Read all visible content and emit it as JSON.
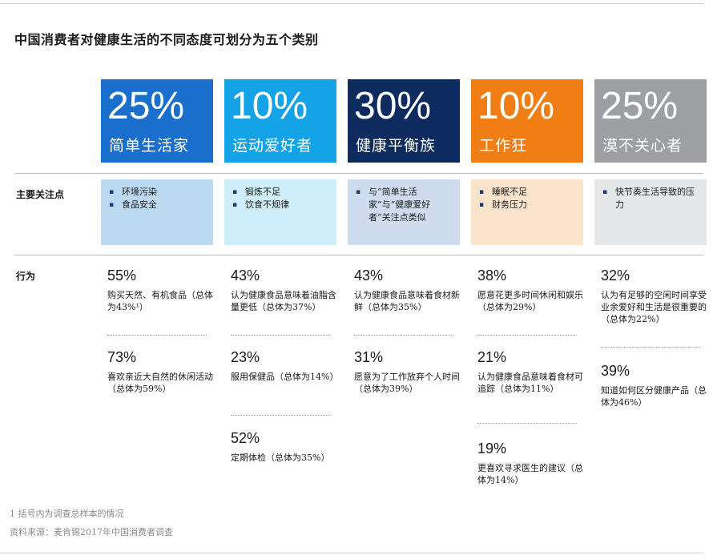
{
  "title": "中国消费者对健康生活的不同态度可划分为五个类别",
  "segments": [
    {
      "pct": "25%",
      "name": "简单生活家",
      "color": "#1a6fcc"
    },
    {
      "pct": "10%",
      "name": "运动爱好者",
      "color": "#13a3e6"
    },
    {
      "pct": "30%",
      "name": "健康平衡族",
      "color": "#0d2b5e"
    },
    {
      "pct": "10%",
      "name": "工作狂",
      "color": "#f07e14"
    },
    {
      "pct": "25%",
      "name": "漠不关心者",
      "color": "#9d9fa3"
    }
  ],
  "row_labels": {
    "focus": "主要关注点",
    "behavior": "行为"
  },
  "focus": [
    {
      "bg": "#bcd9f2",
      "items": [
        "环境污染",
        "食品安全"
      ]
    },
    {
      "bg": "#cdeefa",
      "items": [
        "锻炼不足",
        "饮食不规律"
      ]
    },
    {
      "bg": "#cfdcef",
      "items": [
        "与“简单生活家”与“健康爱好者”关注点类似"
      ]
    },
    {
      "bg": "#fce3cc",
      "items": [
        "睡眠不足",
        "财务压力"
      ]
    },
    {
      "bg": "#e6e7e8",
      "items": [
        "快节奏生活导致的压力"
      ]
    }
  ],
  "behaviors": [
    [
      {
        "num": "55%",
        "desc": "购买天然、有机食品（总体为43%¹）"
      },
      {
        "num": "73%",
        "desc": "喜欢亲近大自然的休闲活动（总体为59%）"
      }
    ],
    [
      {
        "num": "43%",
        "desc": "认为健康食品意味着油脂含量更低（总体为37%）"
      },
      {
        "num": "23%",
        "desc": "服用保健品（总体为14%）"
      },
      {
        "num": "52%",
        "desc": "定期体检（总体为35%）"
      }
    ],
    [
      {
        "num": "43%",
        "desc": "认为健康食品意味着食材新鲜（总体为35%）"
      },
      {
        "num": "31%",
        "desc": "愿意为了工作放弃个人时间（总体为39%）"
      }
    ],
    [
      {
        "num": "38%",
        "desc": "愿意花更多时间休闲和娱乐（总体为29%）"
      },
      {
        "num": "21%",
        "desc": "认为健康食品意味着食材可追踪（总体为11%）"
      },
      {
        "num": "19%",
        "desc": "更喜欢寻求医生的建议（总体为14%）"
      }
    ],
    [
      {
        "num": "32%",
        "desc": "认为有足够的空闲时间享受业余爱好和生活是很重要的（总体为22%）"
      },
      {
        "num": "39%",
        "desc": "知道如何区分健康产品（总体为46%）"
      }
    ]
  ],
  "footnotes": [
    "1 括号内为调查总样本的情况",
    "资料来源：麦肯锡2017年中国消费者调查"
  ]
}
